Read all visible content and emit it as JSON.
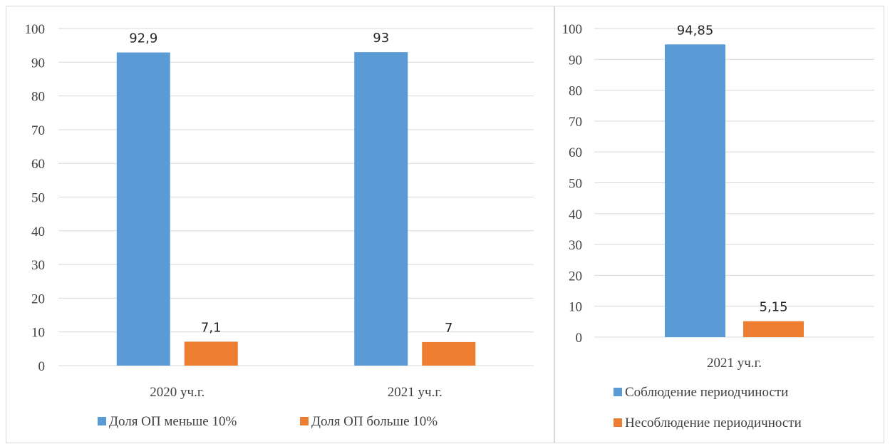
{
  "colors": {
    "series1": "#5b9bd5",
    "series2": "#ed7d31",
    "grid": "#d9d9d9",
    "text": "#404040"
  },
  "chart_data": [
    {
      "type": "bar",
      "categories": [
        "2020 уч.г.",
        "2021 уч.г."
      ],
      "series": [
        {
          "name": "Доля ОП меньше 10%",
          "values": [
            92.9,
            93
          ],
          "labels": [
            "92,9",
            "93"
          ]
        },
        {
          "name": "Доля ОП больше 10%",
          "values": [
            7.1,
            7
          ],
          "labels": [
            "7,1",
            "7"
          ]
        }
      ],
      "ylim": [
        0,
        100
      ],
      "yticks": [
        "0",
        "10",
        "20",
        "30",
        "40",
        "50",
        "60",
        "70",
        "80",
        "90",
        "100"
      ],
      "grid": true,
      "legend": "bottom"
    },
    {
      "type": "bar",
      "categories": [
        "2021 уч.г."
      ],
      "series": [
        {
          "name": "Соблюдение периодчиности",
          "values": [
            94.85
          ],
          "labels": [
            "94,85"
          ]
        },
        {
          "name": "Несоблюдение периодичности",
          "values": [
            5.15
          ],
          "labels": [
            "5,15"
          ]
        }
      ],
      "ylim": [
        0,
        100
      ],
      "yticks": [
        "0",
        "10",
        "20",
        "30",
        "40",
        "50",
        "60",
        "70",
        "80",
        "90",
        "100"
      ],
      "grid": true,
      "legend": "bottom"
    }
  ]
}
